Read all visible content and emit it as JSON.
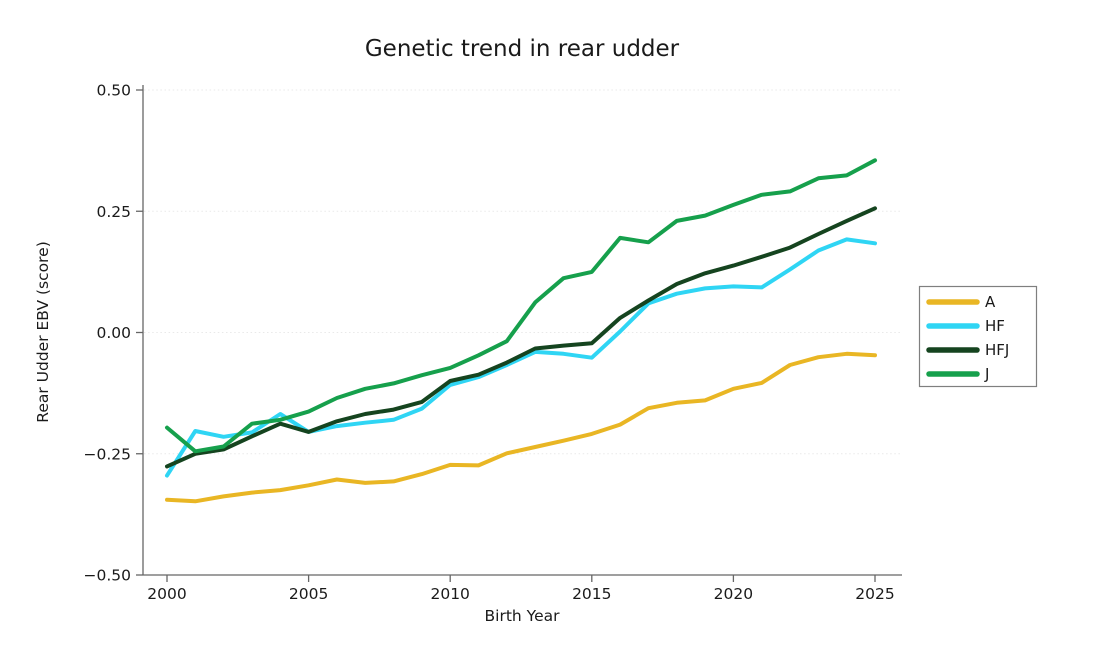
{
  "title": "Genetic trend in rear udder",
  "chart_data": {
    "type": "line",
    "title": "Genetic trend in rear udder",
    "xlabel": "Birth Year",
    "ylabel": "Rear Udder EBV (score)",
    "xlim": [
      1999.2,
      2026.0
    ],
    "ylim": [
      -0.5,
      0.5
    ],
    "xticks": [
      2000,
      2005,
      2010,
      2015,
      2020,
      2025
    ],
    "xtick_labels": [
      "2000",
      "2005",
      "2010",
      "2015",
      "2020",
      "2025"
    ],
    "yticks": [
      0.5,
      0.25,
      0.0,
      -0.25,
      -0.5
    ],
    "ytick_labels": [
      "0.50",
      "0.25",
      "0.00",
      "−0.25",
      "−0.50"
    ],
    "grid": "horizontal-dotted",
    "legend_position": "right",
    "x": [
      2000,
      2001,
      2002,
      2003,
      2004,
      2005,
      2006,
      2007,
      2008,
      2009,
      2010,
      2011,
      2012,
      2013,
      2014,
      2015,
      2016,
      2017,
      2018,
      2019,
      2020,
      2021,
      2022,
      2023,
      2024,
      2025
    ],
    "series": [
      {
        "name": "A",
        "color": "#E9B624",
        "values": [
          -0.345,
          -0.348,
          -0.338,
          -0.33,
          -0.325,
          -0.315,
          -0.303,
          -0.31,
          -0.307,
          -0.292,
          -0.273,
          -0.274,
          -0.249,
          -0.236,
          -0.223,
          -0.209,
          -0.19,
          -0.156,
          -0.145,
          -0.14,
          -0.116,
          -0.104,
          -0.067,
          -0.051,
          -0.044,
          -0.047
        ]
      },
      {
        "name": "HF",
        "color": "#2FD5F4",
        "values": [
          -0.295,
          -0.203,
          -0.215,
          -0.206,
          -0.168,
          -0.205,
          -0.193,
          -0.186,
          -0.18,
          -0.157,
          -0.108,
          -0.092,
          -0.067,
          -0.04,
          -0.044,
          -0.052,
          0.002,
          0.06,
          0.08,
          0.091,
          0.095,
          0.093,
          0.13,
          0.169,
          0.192,
          0.184
        ]
      },
      {
        "name": "HFJ",
        "color": "#15441F",
        "values": [
          -0.276,
          -0.25,
          -0.241,
          -0.214,
          -0.188,
          -0.205,
          -0.183,
          -0.168,
          -0.159,
          -0.143,
          -0.1,
          -0.087,
          -0.062,
          -0.033,
          -0.027,
          -0.022,
          0.03,
          0.066,
          0.1,
          0.122,
          0.138,
          0.156,
          0.175,
          0.203,
          0.23,
          0.256
        ]
      },
      {
        "name": "J",
        "color": "#16A04C",
        "values": [
          -0.196,
          -0.245,
          -0.235,
          -0.188,
          -0.18,
          -0.163,
          -0.135,
          -0.116,
          -0.105,
          -0.088,
          -0.073,
          -0.047,
          -0.018,
          0.062,
          0.112,
          0.125,
          0.195,
          0.186,
          0.23,
          0.241,
          0.263,
          0.284,
          0.291,
          0.318,
          0.324,
          0.355
        ]
      }
    ],
    "style": {
      "line_width": 4,
      "axis_color": "#666666",
      "grid_color": "#e9e9e9",
      "legend_border_color": "#7f7f7f",
      "background": "#ffffff"
    }
  }
}
